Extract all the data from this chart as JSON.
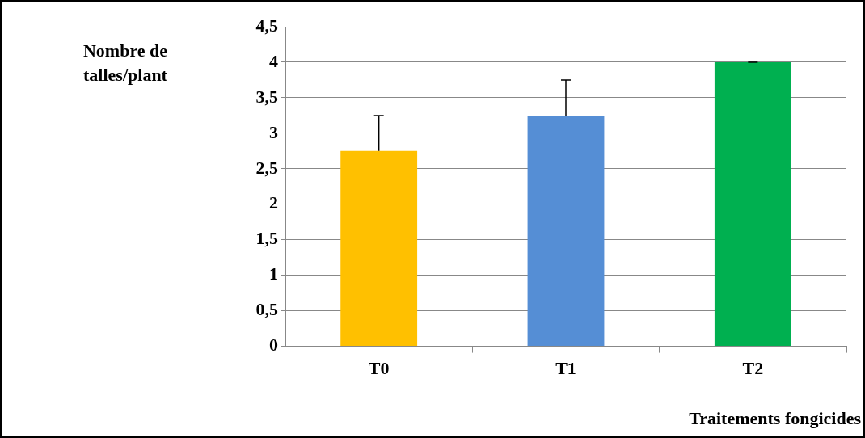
{
  "chart_data": {
    "type": "bar",
    "xlabel": "Traitements fongicides",
    "ylabel": "Nombre de\ntalles/plant",
    "categories": [
      "T0",
      "T1",
      "T2"
    ],
    "values": [
      2.75,
      3.25,
      4
    ],
    "colors": [
      "#ffc000",
      "#558ed5",
      "#00b050"
    ],
    "errors": [
      [
        2.75,
        3.25
      ],
      [
        3.25,
        3.75
      ],
      [
        4,
        4
      ]
    ],
    "ylim": [
      0,
      4.5
    ],
    "yticks": [
      {
        "value": 0,
        "label": "0"
      },
      {
        "value": 0.5,
        "label": "0,5"
      },
      {
        "value": 1,
        "label": "1"
      },
      {
        "value": 1.5,
        "label": "1,5"
      },
      {
        "value": 2,
        "label": "2"
      },
      {
        "value": 2.5,
        "label": "2,5"
      },
      {
        "value": 3,
        "label": "3"
      },
      {
        "value": 3.5,
        "label": "3,5"
      },
      {
        "value": 4,
        "label": "4"
      },
      {
        "value": 4.5,
        "label": "4,5"
      }
    ],
    "grid": "y",
    "legend": false
  }
}
